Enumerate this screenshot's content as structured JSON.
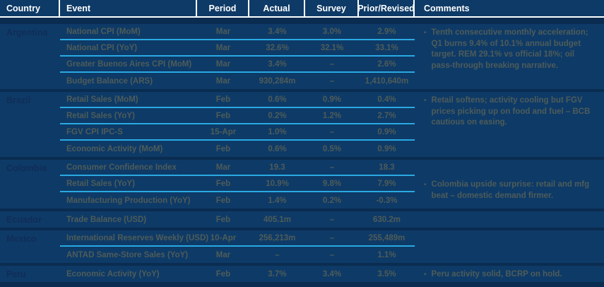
{
  "chart_data": {
    "type": "table",
    "columns": [
      "Country",
      "Event",
      "Period",
      "Actual",
      "Survey",
      "Prior/Revised",
      "Comments"
    ],
    "sections": [
      {
        "country": "Argentina",
        "rows": [
          {
            "event": "National CPI (MoM)",
            "period": "Mar",
            "actual": "3.4%",
            "survey": "3.0%",
            "prior": "2.9%"
          },
          {
            "event": "National CPI (YoY)",
            "period": "Mar",
            "actual": "32.6%",
            "survey": "32.1%",
            "prior": "33.1%"
          },
          {
            "event": "Greater Buenos Aires CPI (MoM)",
            "period": "Mar",
            "actual": "3.4%",
            "survey": "–",
            "prior": "2.6%"
          },
          {
            "event": "Budget Balance (ARS)",
            "period": "Mar",
            "actual": "930,284m",
            "survey": "–",
            "prior": "1,410,640m"
          }
        ],
        "comment": "Tenth consecutive monthly acceleration; Q1 burns 9.4% of 10.1% annual budget target. REM 29.1% vs official 18%; oil pass-through breaking narrative.",
        "comment_offset_rows": 0
      },
      {
        "country": "Brazil",
        "rows": [
          {
            "event": "Retail Sales (MoM)",
            "period": "Feb",
            "actual": "0.6%",
            "survey": "0.9%",
            "prior": "0.4%"
          },
          {
            "event": "Retail Sales (YoY)",
            "period": "Feb",
            "actual": "0.2%",
            "survey": "1.2%",
            "prior": "2.7%"
          },
          {
            "event": "FGV CPI IPC-S",
            "period": "15-Apr",
            "actual": "1.0%",
            "survey": "–",
            "prior": "0.9%"
          },
          {
            "event": "Economic Activity (MoM)",
            "period": "Feb",
            "actual": "0.6%",
            "survey": "0.5%",
            "prior": "0.9%"
          }
        ],
        "comment": "Retail softens; activity cooling but FGV prices picking up on food and fuel – BCB cautious on easing.",
        "comment_offset_rows": 0
      },
      {
        "country": "Colombia",
        "rows": [
          {
            "event": "Consumer Confidence Index",
            "period": "Mar",
            "actual": "19.3",
            "survey": "–",
            "prior": "18.3"
          },
          {
            "event": "Retail Sales (YoY)",
            "period": "Feb",
            "actual": "10.9%",
            "survey": "9.8%",
            "prior": "7.9%"
          },
          {
            "event": "Manufacturing Production (YoY)",
            "period": "Feb",
            "actual": "1.4%",
            "survey": "0.2%",
            "prior": "-0.3%"
          }
        ],
        "comment": "Colombia upside surprise: retail and mfg beat – domestic demand firmer.",
        "comment_offset_rows": 1
      },
      {
        "country": "Ecuador",
        "rows": [
          {
            "event": "Trade Balance (USD)",
            "period": "Feb",
            "actual": "405.1m",
            "survey": "–",
            "prior": "630.2m"
          }
        ],
        "comment": "",
        "comment_offset_rows": 0
      },
      {
        "country": "Mexico",
        "rows": [
          {
            "event": "International Reserves Weekly (USD)",
            "period": "10-Apr",
            "actual": "256,213m",
            "survey": "–",
            "prior": "255,489m"
          },
          {
            "event": "ANTAD Same-Store Sales (YoY)",
            "period": "Mar",
            "actual": "–",
            "survey": "–",
            "prior": "1.1%"
          }
        ],
        "comment": "",
        "comment_offset_rows": 0
      },
      {
        "country": "Peru",
        "rows": [
          {
            "event": "Economic Activity (YoY)",
            "period": "Feb",
            "actual": "3.7%",
            "survey": "3.4%",
            "prior": "3.5%"
          }
        ],
        "comment": "Peru activity solid, BCRP on hold.",
        "comment_offset_rows": 0
      }
    ]
  },
  "bullet": "•",
  "colors": {
    "bg_dark": "#0a2c50",
    "panel": "#0e3a67",
    "header_text": "#ffffff",
    "header_line": "#ffffff",
    "country_text": "#102d58",
    "body_text": "#4e5c59",
    "divider_blue": "#29a9e2"
  }
}
